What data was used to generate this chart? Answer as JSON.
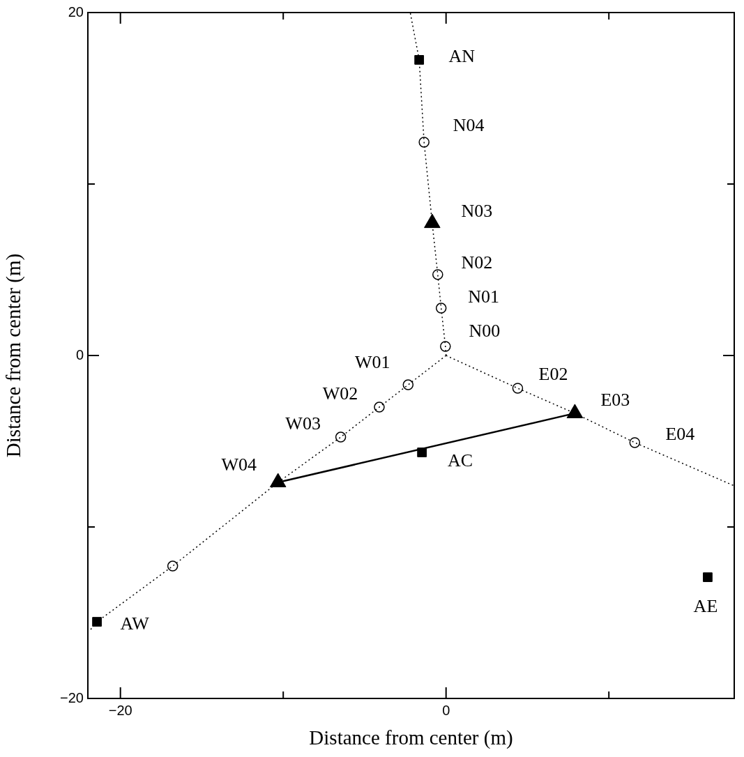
{
  "chart_data": {
    "type": "scatter",
    "xlabel": "Distance from center (m)",
    "ylabel": "Distance from center (m)",
    "xlim": [
      -22,
      17.7
    ],
    "ylim": [
      -20,
      20
    ],
    "xticks": [
      {
        "value": -20,
        "label": "−20"
      },
      {
        "value": -10,
        "label": null
      },
      {
        "value": 0,
        "label": "0"
      },
      {
        "value": 10,
        "label": null
      }
    ],
    "yticks": [
      {
        "value": -20,
        "label": "−20"
      },
      {
        "value": -10,
        "label": null
      },
      {
        "value": 0,
        "label": "0"
      },
      {
        "value": 10,
        "label": null
      },
      {
        "value": 20,
        "label": "20"
      }
    ],
    "grid": false,
    "legend": false,
    "series": [
      {
        "type": "line",
        "color": "#000000",
        "line_style": "dotted",
        "marker": "none",
        "x": [
          0,
          -0.04,
          -0.3,
          -0.51,
          -0.85,
          -1.35,
          -1.65,
          -2.2
        ],
        "values": [
          0,
          0.53,
          2.76,
          4.72,
          7.72,
          12.44,
          17.24,
          20
        ]
      },
      {
        "type": "line",
        "color": "#000000",
        "line_style": "dotted",
        "marker": "none",
        "x": [
          0,
          -2.33,
          -4.1,
          -6.47,
          -10.32,
          -16.79,
          -21.44,
          -21.9
        ],
        "values": [
          0,
          -1.71,
          -3.01,
          -4.76,
          -7.4,
          -12.28,
          -15.53,
          -16.06
        ]
      },
      {
        "type": "line",
        "color": "#000000",
        "line_style": "dotted",
        "marker": "none",
        "x": [
          0,
          4.4,
          7.91,
          11.59,
          17.7
        ],
        "values": [
          0,
          -1.91,
          -3.37,
          -5.08,
          -7.6
        ]
      },
      {
        "type": "line",
        "color": "#000000",
        "line_style": "solid",
        "marker": "none",
        "x": [
          -10.32,
          7.91
        ],
        "values": [
          -7.4,
          -3.37
        ]
      },
      {
        "type": "scatter",
        "color": "#000000",
        "marker": "circle",
        "x": [
          -0.04,
          -0.3,
          -0.51,
          -1.35,
          -2.33,
          -4.1,
          -6.47,
          -16.79,
          4.4,
          11.59
        ],
        "values": [
          0.53,
          2.76,
          4.72,
          12.44,
          -1.71,
          -3.01,
          -4.76,
          -12.28,
          -1.91,
          -5.08
        ]
      },
      {
        "type": "scatter",
        "color": "#000000",
        "marker": "triangle",
        "x": [
          -0.85,
          -10.32,
          7.91
        ],
        "values": [
          7.72,
          -7.4,
          -3.37
        ]
      },
      {
        "type": "scatter",
        "color": "#000000",
        "marker": "square",
        "x": [
          -1.65,
          -21.44,
          -1.48,
          16.07
        ],
        "values": [
          17.24,
          -15.53,
          -5.65,
          -12.93
        ]
      }
    ],
    "annotations": [
      {
        "text": "AN",
        "x": -1.65,
        "y": 17.24
      },
      {
        "text": "N04",
        "x": -1.35,
        "y": 12.44
      },
      {
        "text": "N03",
        "x": -0.85,
        "y": 7.72
      },
      {
        "text": "N02",
        "x": -0.51,
        "y": 4.72
      },
      {
        "text": "N01",
        "x": -0.3,
        "y": 2.76
      },
      {
        "text": "N00",
        "x": -0.04,
        "y": 0.53
      },
      {
        "text": "W01",
        "x": -2.33,
        "y": -1.71
      },
      {
        "text": "W02",
        "x": -4.1,
        "y": -3.01
      },
      {
        "text": "W03",
        "x": -6.47,
        "y": -4.76
      },
      {
        "text": "W04",
        "x": -10.32,
        "y": -7.4
      },
      {
        "text": "AC",
        "x": -1.48,
        "y": -5.65
      },
      {
        "text": "E02",
        "x": 4.4,
        "y": -1.91
      },
      {
        "text": "E03",
        "x": 7.91,
        "y": -3.37
      },
      {
        "text": "E04",
        "x": 11.59,
        "y": -5.08
      },
      {
        "text": "AW",
        "x": -21.44,
        "y": -15.53
      },
      {
        "text": "AE",
        "x": 16.07,
        "y": -12.93
      }
    ]
  }
}
